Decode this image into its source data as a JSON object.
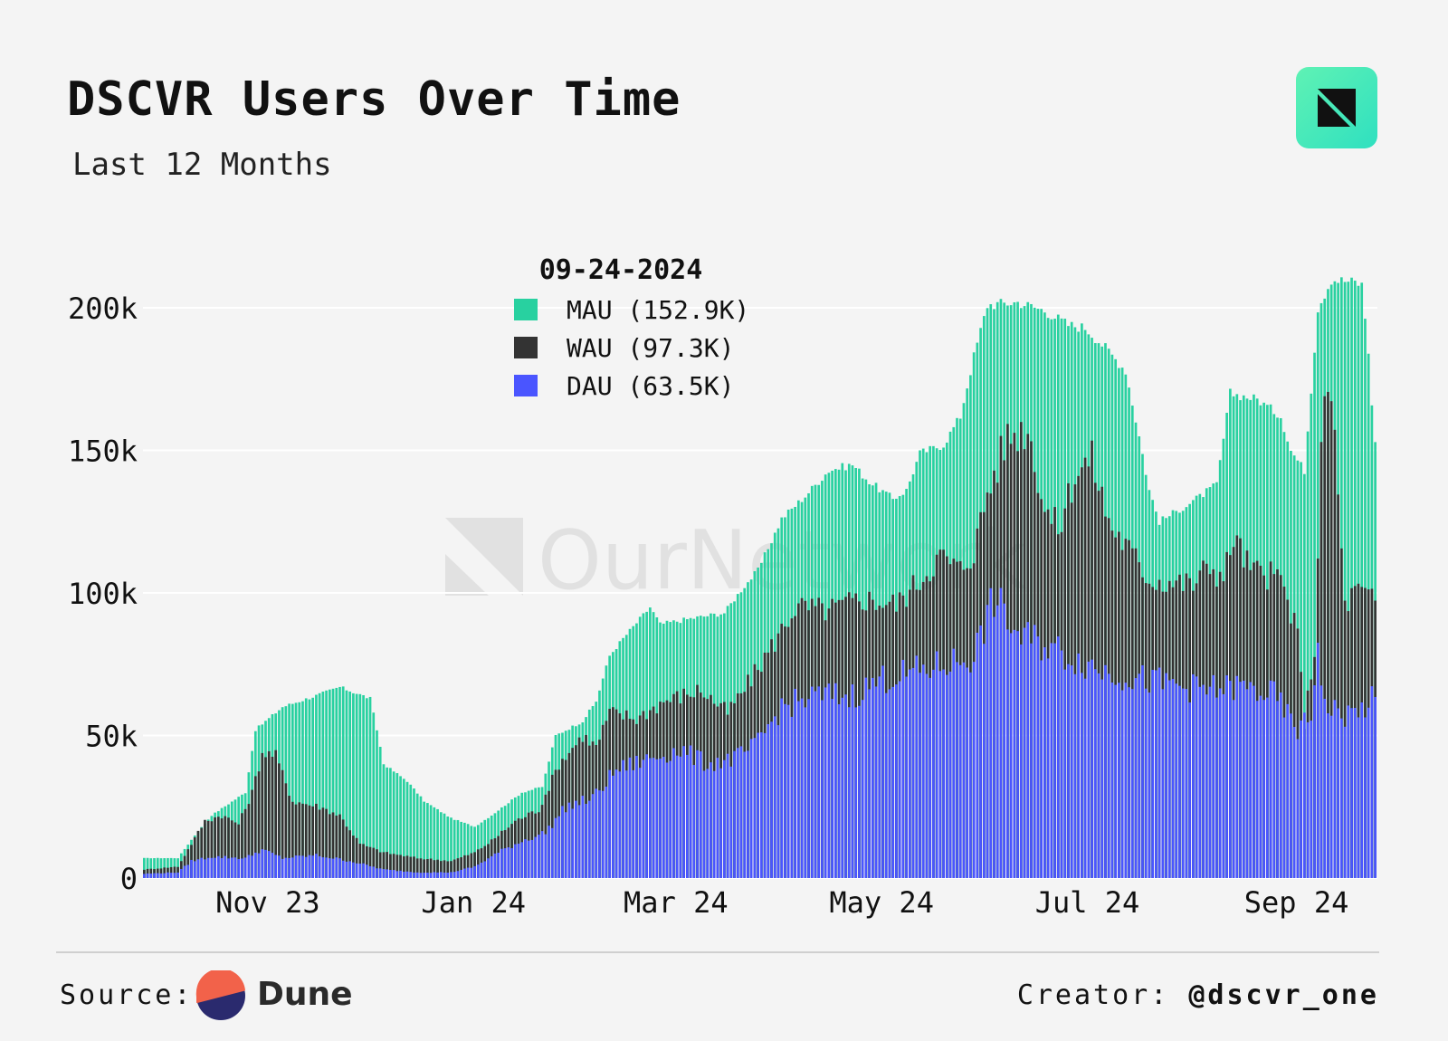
{
  "header": {
    "title": "DSCVR Users Over Time",
    "subtitle": "Last 12 Months"
  },
  "footer": {
    "source_label": "Source:",
    "source_name": "Dune",
    "creator_label": "Creator:",
    "creator_handle": "@dscvr_one"
  },
  "colors": {
    "mau": "#28d1a0",
    "wau": "#333333",
    "dau": "#4a55ff",
    "grid": "#ffffff",
    "logo_accent": "#2fe0c0"
  },
  "chart_data": {
    "type": "bar",
    "stacked": "overlapping",
    "x_range": [
      "2023-09-25",
      "2024-09-24"
    ],
    "ylim": [
      0,
      200000
    ],
    "yticks": [
      0,
      50000,
      100000,
      150000,
      200000
    ],
    "ytick_labels": [
      "0",
      "50k",
      "100k",
      "150k",
      "200k"
    ],
    "xtick_labels": [
      "Nov 23",
      "Jan 24",
      "Mar 24",
      "May 24",
      "Jul 24",
      "Sep 24"
    ],
    "xtick_dates": [
      "2023-11-01",
      "2024-01-01",
      "2024-03-01",
      "2024-05-01",
      "2024-07-01",
      "2024-09-01"
    ],
    "grid": true,
    "legend_position": "top-center",
    "legend_title": "09-24-2024",
    "series": [
      {
        "name": "MAU",
        "legend_label": "MAU (152.9K)",
        "color": "#28d1a0",
        "points": [
          [
            "2023-09-25",
            7000
          ],
          [
            "2023-10-05",
            7000
          ],
          [
            "2023-10-10",
            15000
          ],
          [
            "2023-10-15",
            22000
          ],
          [
            "2023-10-20",
            26000
          ],
          [
            "2023-10-25",
            30000
          ],
          [
            "2023-10-28",
            52000
          ],
          [
            "2023-11-01",
            56000
          ],
          [
            "2023-11-05",
            60000
          ],
          [
            "2023-11-15",
            64000
          ],
          [
            "2023-11-22",
            67000
          ],
          [
            "2023-12-01",
            63000
          ],
          [
            "2023-12-03",
            52000
          ],
          [
            "2023-12-05",
            40000
          ],
          [
            "2023-12-12",
            34000
          ],
          [
            "2023-12-17",
            27000
          ],
          [
            "2023-12-25",
            21000
          ],
          [
            "2024-01-01",
            18000
          ],
          [
            "2024-01-06",
            22000
          ],
          [
            "2024-01-15",
            30000
          ],
          [
            "2024-01-21",
            32000
          ],
          [
            "2024-01-25",
            50000
          ],
          [
            "2024-02-02",
            55000
          ],
          [
            "2024-02-06",
            62000
          ],
          [
            "2024-02-10",
            78000
          ],
          [
            "2024-02-14",
            84000
          ],
          [
            "2024-02-22",
            95000
          ],
          [
            "2024-02-25",
            89000
          ],
          [
            "2024-03-05",
            91000
          ],
          [
            "2024-03-15",
            93000
          ],
          [
            "2024-03-20",
            101000
          ],
          [
            "2024-03-25",
            108000
          ],
          [
            "2024-04-01",
            126000
          ],
          [
            "2024-04-08",
            134000
          ],
          [
            "2024-04-15",
            143000
          ],
          [
            "2024-04-22",
            145000
          ],
          [
            "2024-04-27",
            139000
          ],
          [
            "2024-05-04",
            133000
          ],
          [
            "2024-05-08",
            136000
          ],
          [
            "2024-05-12",
            149000
          ],
          [
            "2024-05-19",
            152000
          ],
          [
            "2024-05-24",
            162000
          ],
          [
            "2024-05-28",
            183000
          ],
          [
            "2024-06-01",
            201000
          ],
          [
            "2024-06-10",
            202000
          ],
          [
            "2024-06-18",
            199000
          ],
          [
            "2024-06-25",
            194000
          ],
          [
            "2024-06-30",
            193000
          ],
          [
            "2024-07-06",
            186000
          ],
          [
            "2024-07-12",
            178000
          ],
          [
            "2024-07-16",
            155000
          ],
          [
            "2024-07-19",
            136000
          ],
          [
            "2024-07-22",
            125000
          ],
          [
            "2024-07-29",
            130000
          ],
          [
            "2024-08-02",
            133000
          ],
          [
            "2024-08-08",
            138000
          ],
          [
            "2024-08-12",
            170000
          ],
          [
            "2024-08-20",
            168000
          ],
          [
            "2024-08-27",
            162000
          ],
          [
            "2024-08-30",
            150000
          ],
          [
            "2024-09-03",
            143000
          ],
          [
            "2024-09-07",
            200000
          ],
          [
            "2024-09-11",
            210000
          ],
          [
            "2024-09-18",
            209000
          ],
          [
            "2024-09-20",
            208000
          ],
          [
            "2024-09-22",
            185000
          ],
          [
            "2024-09-23",
            165000
          ],
          [
            "2024-09-24",
            152900
          ]
        ]
      },
      {
        "name": "WAU",
        "legend_label": "WAU (97.3K)",
        "color": "#333333",
        "points": [
          [
            "2023-09-25",
            3000
          ],
          [
            "2023-10-05",
            4000
          ],
          [
            "2023-10-09",
            12000
          ],
          [
            "2023-10-13",
            20000
          ],
          [
            "2023-10-18",
            22000
          ],
          [
            "2023-10-23",
            19000
          ],
          [
            "2023-10-27",
            30000
          ],
          [
            "2023-10-30",
            44000
          ],
          [
            "2023-11-03",
            43000
          ],
          [
            "2023-11-08",
            27000
          ],
          [
            "2023-11-16",
            25000
          ],
          [
            "2023-11-22",
            22000
          ],
          [
            "2023-11-28",
            12000
          ],
          [
            "2023-12-05",
            9000
          ],
          [
            "2023-12-15",
            7000
          ],
          [
            "2023-12-25",
            6000
          ],
          [
            "2024-01-01",
            9000
          ],
          [
            "2024-01-06",
            13000
          ],
          [
            "2024-01-13",
            20000
          ],
          [
            "2024-01-20",
            24000
          ],
          [
            "2024-01-26",
            40000
          ],
          [
            "2024-02-02",
            50000
          ],
          [
            "2024-02-06",
            46000
          ],
          [
            "2024-02-10",
            58000
          ],
          [
            "2024-02-18",
            56000
          ],
          [
            "2024-02-26",
            62000
          ],
          [
            "2024-03-08",
            66000
          ],
          [
            "2024-03-16",
            58000
          ],
          [
            "2024-03-22",
            68000
          ],
          [
            "2024-03-30",
            83000
          ],
          [
            "2024-04-05",
            95000
          ],
          [
            "2024-04-15",
            94000
          ],
          [
            "2024-04-25",
            98000
          ],
          [
            "2024-05-05",
            96000
          ],
          [
            "2024-05-10",
            102000
          ],
          [
            "2024-05-18",
            113000
          ],
          [
            "2024-05-24",
            108000
          ],
          [
            "2024-05-28",
            115000
          ],
          [
            "2024-06-01",
            135000
          ],
          [
            "2024-06-07",
            155000
          ],
          [
            "2024-06-13",
            158000
          ],
          [
            "2024-06-18",
            130000
          ],
          [
            "2024-06-22",
            122000
          ],
          [
            "2024-06-27",
            142000
          ],
          [
            "2024-07-02",
            147000
          ],
          [
            "2024-07-07",
            125000
          ],
          [
            "2024-07-13",
            115000
          ],
          [
            "2024-07-19",
            105000
          ],
          [
            "2024-07-25",
            104000
          ],
          [
            "2024-08-01",
            103000
          ],
          [
            "2024-08-06",
            110000
          ],
          [
            "2024-08-10",
            105000
          ],
          [
            "2024-08-13",
            120000
          ],
          [
            "2024-08-18",
            108000
          ],
          [
            "2024-08-27",
            105000
          ],
          [
            "2024-09-01",
            85000
          ],
          [
            "2024-09-03",
            55000
          ],
          [
            "2024-09-06",
            80000
          ],
          [
            "2024-09-08",
            150000
          ],
          [
            "2024-09-10",
            174000
          ],
          [
            "2024-09-12",
            155000
          ],
          [
            "2024-09-15",
            95000
          ],
          [
            "2024-09-18",
            101000
          ],
          [
            "2024-09-24",
            97300
          ]
        ]
      },
      {
        "name": "DAU",
        "legend_label": "DAU (63.5K)",
        "color": "#4a55ff",
        "points": [
          [
            "2023-09-25",
            1500
          ],
          [
            "2023-10-05",
            2000
          ],
          [
            "2023-10-09",
            6000
          ],
          [
            "2023-10-15",
            7500
          ],
          [
            "2023-10-25",
            7000
          ],
          [
            "2023-10-30",
            10000
          ],
          [
            "2023-11-05",
            7000
          ],
          [
            "2023-11-15",
            8000
          ],
          [
            "2023-11-25",
            6000
          ],
          [
            "2023-12-05",
            3000
          ],
          [
            "2023-12-15",
            2000
          ],
          [
            "2023-12-25",
            2000
          ],
          [
            "2024-01-01",
            4000
          ],
          [
            "2024-01-08",
            9000
          ],
          [
            "2024-01-15",
            13000
          ],
          [
            "2024-01-22",
            16000
          ],
          [
            "2024-01-28",
            25000
          ],
          [
            "2024-02-05",
            28000
          ],
          [
            "2024-02-12",
            38000
          ],
          [
            "2024-02-22",
            42000
          ],
          [
            "2024-03-02",
            45000
          ],
          [
            "2024-03-10",
            40000
          ],
          [
            "2024-03-18",
            42000
          ],
          [
            "2024-03-24",
            46000
          ],
          [
            "2024-04-01",
            60000
          ],
          [
            "2024-04-12",
            64000
          ],
          [
            "2024-04-22",
            64000
          ],
          [
            "2024-05-01",
            70000
          ],
          [
            "2024-05-10",
            72000
          ],
          [
            "2024-05-20",
            75000
          ],
          [
            "2024-05-28",
            78000
          ],
          [
            "2024-06-03",
            98000
          ],
          [
            "2024-06-10",
            85000
          ],
          [
            "2024-06-18",
            82000
          ],
          [
            "2024-06-25",
            78000
          ],
          [
            "2024-07-05",
            73000
          ],
          [
            "2024-07-15",
            70000
          ],
          [
            "2024-07-25",
            68000
          ],
          [
            "2024-08-05",
            66000
          ],
          [
            "2024-08-15",
            67000
          ],
          [
            "2024-08-25",
            64000
          ],
          [
            "2024-09-01",
            52000
          ],
          [
            "2024-09-05",
            56000
          ],
          [
            "2024-09-07",
            84000
          ],
          [
            "2024-09-09",
            60000
          ],
          [
            "2024-09-15",
            57000
          ],
          [
            "2024-09-20",
            59000
          ],
          [
            "2024-09-24",
            63500
          ]
        ]
      }
    ]
  }
}
